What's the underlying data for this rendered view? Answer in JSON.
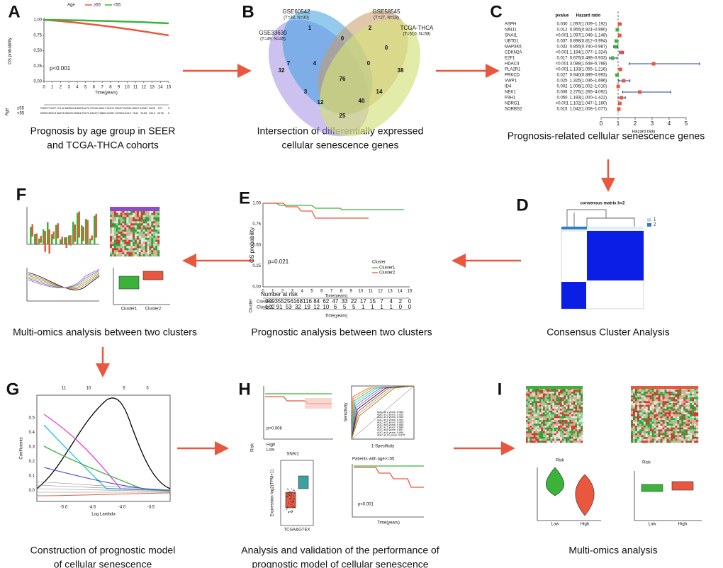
{
  "panels": {
    "a": {
      "letter": "A",
      "caption": [
        "Prognosis by age group in SEER",
        "and TCGA-THCA cohorts"
      ],
      "legend_title": "Age",
      "legend": [
        "≥55",
        "<55"
      ],
      "y_label": "OS probability",
      "y_ticks": [
        "1.00",
        "0.75",
        "0.50",
        "0.25",
        "0.00"
      ],
      "x_label": "Time(years)",
      "x_ticks": [
        "0",
        "1",
        "2",
        "3",
        "4",
        "5",
        "6",
        "7",
        "8",
        "9",
        "10",
        "11",
        "12",
        "13",
        "14",
        "15"
      ],
      "p_value": "p<0.001",
      "risk_label": "Age",
      "risk_rows": [
        [
          "70639",
          "70027",
          "70141",
          "68958",
          "61589",
          "54470",
          "47026",
          "40047",
          "34617",
          "25637",
          "21836",
          "15007",
          "10082",
          "5390",
          "577",
          "3"
        ],
        [
          "39095",
          "38574",
          "38678",
          "36025",
          "32564",
          "29473",
          "24467",
          "19880",
          "16057",
          "12905",
          "10412",
          "7811",
          "5106",
          "2412",
          "1978",
          "0"
        ]
      ]
    },
    "b": {
      "letter": "B",
      "caption": [
        "Intersection of differentially expressed",
        "cellular senescence genes"
      ],
      "sets": [
        {
          "name": "GSE60542",
          "size": "(T=33, N=30)"
        },
        {
          "name": "GSE58545",
          "size": "(T=27, N=18)"
        },
        {
          "name": "GSE33630",
          "size": "(T=49, N=45)"
        },
        {
          "name": "TCGA-THCA",
          "size": "(T=510, N=58)"
        }
      ],
      "counts": [
        "1",
        "2",
        "7",
        "0",
        "0",
        "4",
        "76",
        "0",
        "32",
        "38",
        "3",
        "14",
        "12",
        "40",
        "25"
      ]
    },
    "c": {
      "letter": "C",
      "caption": [
        "Prognosis-related cellular senescence genes"
      ],
      "headers": [
        "pvalue",
        "Hazard ratio"
      ],
      "x_label": "Hazard ratio",
      "x_ticks": [
        0,
        1,
        2,
        3,
        4,
        5
      ],
      "rows": [
        {
          "gene": "ASPH",
          "p": "0.030",
          "hr_text": "1.097(1.009–1.192)",
          "hr": 1.097,
          "lo": 1.009,
          "hi": 1.192
        },
        {
          "gene": "NINJ1",
          "p": "0.012",
          "hr_text": "0.955(0.921–0.990)",
          "hr": 0.955,
          "lo": 0.921,
          "hi": 0.99
        },
        {
          "gene": "SNAI1",
          "p": "<0.001",
          "hr_text": "1.097(1.049–1.148)",
          "hr": 1.097,
          "lo": 1.049,
          "hi": 1.148
        },
        {
          "gene": "UBTD1",
          "p": "0.037",
          "hr_text": "0.898(0.812–0.994)",
          "hr": 0.898,
          "lo": 0.812,
          "hi": 0.994
        },
        {
          "gene": "MAP3K6",
          "p": "0.032",
          "hr_text": "0.855(0.740–0.987)",
          "hr": 0.855,
          "lo": 0.74,
          "hi": 0.987
        },
        {
          "gene": "CDKN2A",
          "p": "<0.001",
          "hr_text": "1.194(1.077–1.324)",
          "hr": 1.194,
          "lo": 1.077,
          "hi": 1.324
        },
        {
          "gene": "E2F1",
          "p": "0.017",
          "hr_text": "0.675(0.488–0.933)",
          "hr": 0.675,
          "lo": 0.488,
          "hi": 0.933
        },
        {
          "gene": "HDAC4",
          "p": "<0.001",
          "hr_text": "3.088(1.648–5.788)",
          "hr": 3.088,
          "lo": 1.648,
          "hi": 5.788
        },
        {
          "gene": "PLA2R1",
          "p": "<0.001",
          "hr_text": "1.133(1.055–1.216)",
          "hr": 1.133,
          "lo": 1.055,
          "hi": 1.216
        },
        {
          "gene": "PRKCD",
          "p": "0.027",
          "hr_text": "0.940(0.889–0.993)",
          "hr": 0.94,
          "lo": 0.889,
          "hi": 0.993
        },
        {
          "gene": "VWP1",
          "p": "0.025",
          "hr_text": "1.325(1.036–1.696)",
          "hr": 1.325,
          "lo": 1.036,
          "hi": 1.696
        },
        {
          "gene": "ID4",
          "p": "0.002",
          "hr_text": "1.006(1.002–1.010)",
          "hr": 1.006,
          "lo": 1.002,
          "hi": 1.01
        },
        {
          "gene": "NEK1",
          "p": "0.006",
          "hr_text": "2.275(1.265–4.092)",
          "hr": 2.275,
          "lo": 1.265,
          "hi": 4.092
        },
        {
          "gene": "P3H1",
          "p": "0.050",
          "hr_text": "1.193(1.000–1.422)",
          "hr": 1.193,
          "lo": 1.0,
          "hi": 1.422
        },
        {
          "gene": "NDRG1",
          "p": "<0.001",
          "hr_text": "1.102(1.047–1.160)",
          "hr": 1.102,
          "lo": 1.047,
          "hi": 1.16
        },
        {
          "gene": "SORBS2",
          "p": "0.015",
          "hr_text": "1.042(1.008–1.077)",
          "hr": 1.042,
          "lo": 1.008,
          "hi": 1.077
        }
      ]
    },
    "d": {
      "letter": "D",
      "caption": [
        "Consensus Cluster Analysis"
      ],
      "title": "consensus matrix k=2",
      "legend": [
        "1",
        "2"
      ]
    },
    "e": {
      "letter": "E",
      "caption": [
        "Prognostic analysis between two clusters"
      ],
      "y_label": "OS probability",
      "y_ticks": [
        "1.00",
        "0.75",
        "0.50",
        "0.25",
        "0.00"
      ],
      "x_label": "Time(years)",
      "x_ticks": [
        "0",
        "1",
        "2",
        "3",
        "4",
        "5",
        "6",
        "7",
        "8",
        "9",
        "10",
        "11",
        "12",
        "13",
        "14",
        "15"
      ],
      "p_value": "p=0.021",
      "legend_title": "Cluster",
      "legend": [
        "Cluster1",
        "Cluster2"
      ],
      "risk_title": "Number at risk",
      "risk_label": "Cluster",
      "risk_rows": [
        [
          "399",
          "355",
          "256",
          "168",
          "116",
          "84",
          "62",
          "47",
          "33",
          "22",
          "17",
          "15",
          "7",
          "4",
          "2",
          "0"
        ],
        [
          "102",
          "91",
          "53",
          "32",
          "19",
          "12",
          "10",
          "6",
          "5",
          "5",
          "1",
          "1",
          "1",
          "1",
          "0",
          "0"
        ]
      ]
    },
    "f": {
      "letter": "F",
      "caption": [
        "Multi-omics analysis between two clusters"
      ],
      "groups": [
        "Cluster1",
        "Cluster2"
      ]
    },
    "g": {
      "letter": "G",
      "caption": [
        "Construction of prognostic model",
        "of cellular senescence"
      ],
      "top_ticks": [
        "11",
        "10",
        "5",
        "3"
      ],
      "x_ticks": [
        "-5.0",
        "-4.5",
        "-4.0",
        "-3.5"
      ],
      "x_label": "Log Lambda",
      "y_ticks": [
        "0.5",
        "0.4",
        "0.3",
        "0.2",
        "0.1",
        "0.0"
      ],
      "y_label": "Coefficients"
    },
    "h": {
      "letter": "H",
      "caption": [
        "Analysis and validation of the performance of",
        "prognostic model of cellular senescence"
      ],
      "p_values": [
        "p=0.006",
        "p<0.001"
      ],
      "roc_x": "1-Specificity",
      "roc_y": "Sensitivity",
      "auc": [
        "AUC at 1 years: 0.984",
        "AUC at 2 years: 0.952",
        "AUC at 3 years: 0.959",
        "AUC at 4 years: 0.963",
        "AUC at 5 years: 0.909",
        "AUC at 6 years: 0.866",
        "AUC at 7 years: 0.884",
        "AUC at 8 years: 0.857",
        "AUC at 9 years: 0.866",
        "AUC at 10 years: 0.875"
      ],
      "gene": "SNAI1",
      "box_x": "TCGA&GTEX",
      "box_y": "Expression log2(TPM+1)",
      "subgroup": "Patients with age>=55",
      "km_x": "Time(years)",
      "risk": "Risk",
      "levels": [
        "High",
        "Low"
      ]
    },
    "i": {
      "letter": "I",
      "caption": [
        "Multi-omics analysis"
      ],
      "risk": "Risk",
      "levels": [
        "Low",
        "High"
      ]
    }
  }
}
